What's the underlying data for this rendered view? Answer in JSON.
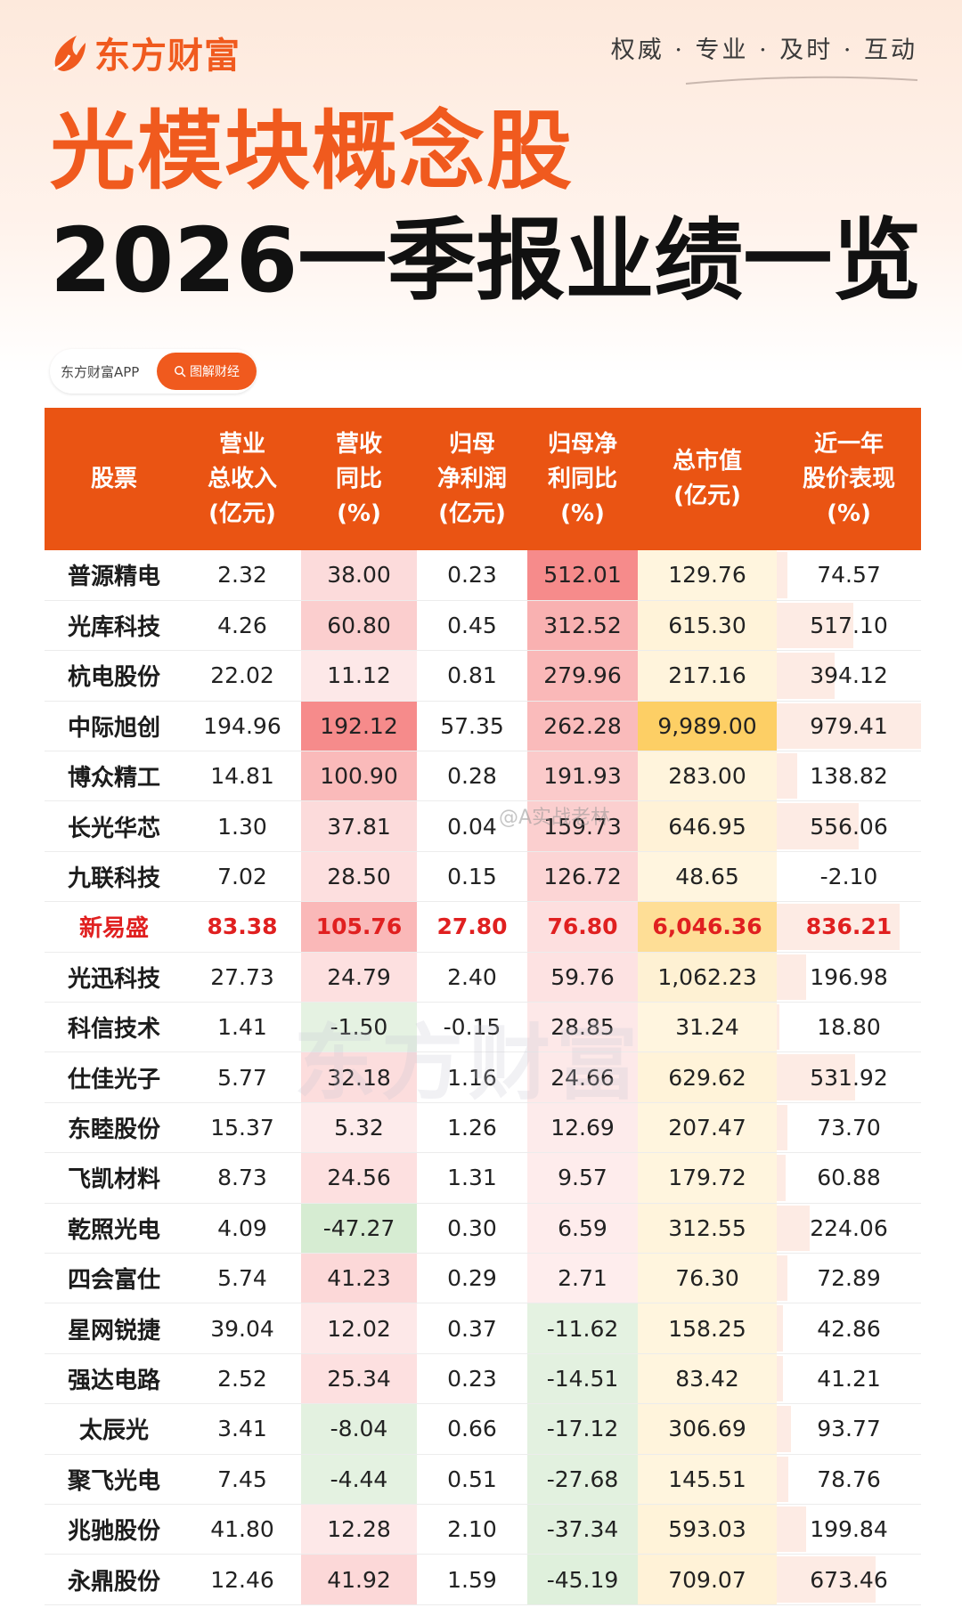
{
  "brand": {
    "name": "东方财富",
    "slogan": "权威 · 专业 · 及时 · 互动"
  },
  "title": {
    "line1": "光模块概念股",
    "line2": "2026一季报业绩一览"
  },
  "source": {
    "app": "东方财富APP",
    "tag": "图解财经"
  },
  "watermark": "@A实战老林",
  "bg_watermark": "东方财富",
  "colors": {
    "accent": "#ea5413",
    "brand": "#f05a1e",
    "highlight_text": "#e02020"
  },
  "table": {
    "headers": [
      "股票",
      "营业\n总收入\n(亿元)",
      "营收\n同比\n(%)",
      "归母\n净利润\n(亿元)",
      "归母净\n利同比\n(%)",
      "总市值\n(亿元)",
      "近一年\n股价表现\n(%)"
    ],
    "highlight_row": 7,
    "rows": [
      [
        "普源精电",
        "2.32",
        "38.00",
        "0.23",
        "512.01",
        "129.76",
        "74.57"
      ],
      [
        "光库科技",
        "4.26",
        "60.80",
        "0.45",
        "312.52",
        "615.30",
        "517.10"
      ],
      [
        "杭电股份",
        "22.02",
        "11.12",
        "0.81",
        "279.96",
        "217.16",
        "394.12"
      ],
      [
        "中际旭创",
        "194.96",
        "192.12",
        "57.35",
        "262.28",
        "9,989.00",
        "979.41"
      ],
      [
        "博众精工",
        "14.81",
        "100.90",
        "0.28",
        "191.93",
        "283.00",
        "138.82"
      ],
      [
        "长光华芯",
        "1.30",
        "37.81",
        "0.04",
        "159.73",
        "646.95",
        "556.06"
      ],
      [
        "九联科技",
        "7.02",
        "28.50",
        "0.15",
        "126.72",
        "48.65",
        "-2.10"
      ],
      [
        "新易盛",
        "83.38",
        "105.76",
        "27.80",
        "76.80",
        "6,046.36",
        "836.21"
      ],
      [
        "光迅科技",
        "27.73",
        "24.79",
        "2.40",
        "59.76",
        "1,062.23",
        "196.98"
      ],
      [
        "科信技术",
        "1.41",
        "-1.50",
        "-0.15",
        "28.85",
        "31.24",
        "18.80"
      ],
      [
        "仕佳光子",
        "5.77",
        "32.18",
        "1.16",
        "24.66",
        "629.62",
        "531.92"
      ],
      [
        "东睦股份",
        "15.37",
        "5.32",
        "1.26",
        "12.69",
        "207.47",
        "73.70"
      ],
      [
        "飞凯材料",
        "8.73",
        "24.56",
        "1.31",
        "9.57",
        "179.72",
        "60.88"
      ],
      [
        "乾照光电",
        "4.09",
        "-47.27",
        "0.30",
        "6.59",
        "312.55",
        "224.06"
      ],
      [
        "四会富仕",
        "5.74",
        "41.23",
        "0.29",
        "2.71",
        "76.30",
        "72.89"
      ],
      [
        "星网锐捷",
        "39.04",
        "12.02",
        "0.37",
        "-11.62",
        "158.25",
        "42.86"
      ],
      [
        "强达电路",
        "2.52",
        "25.34",
        "0.23",
        "-14.51",
        "83.42",
        "41.21"
      ],
      [
        "太辰光",
        "3.41",
        "-8.04",
        "0.66",
        "-17.12",
        "306.69",
        "93.77"
      ],
      [
        "聚飞光电",
        "7.45",
        "-4.44",
        "0.51",
        "-27.68",
        "145.51",
        "78.76"
      ],
      [
        "兆驰股份",
        "41.80",
        "12.28",
        "2.10",
        "-37.34",
        "593.03",
        "199.84"
      ],
      [
        "永鼎股份",
        "12.46",
        "41.92",
        "1.59",
        "-45.19",
        "709.07",
        "673.46"
      ]
    ]
  }
}
